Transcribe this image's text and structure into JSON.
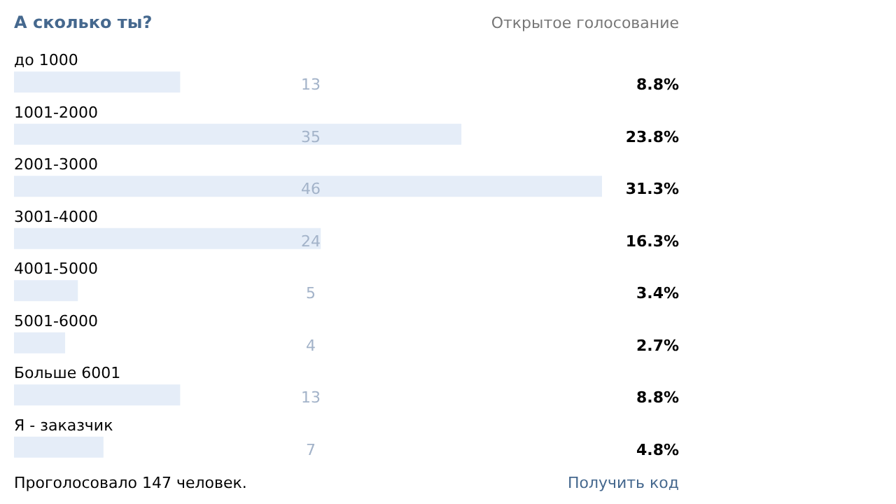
{
  "chart_data": {
    "type": "bar",
    "orientation": "horizontal",
    "title": "А сколько ты?",
    "subtitle": "Открытое голосование",
    "categories": [
      "до 1000",
      "1001-2000",
      "2001-3000",
      "3001-4000",
      "4001-5000",
      "5001-6000",
      "Больше 6001",
      "Я - заказчик"
    ],
    "values": [
      13,
      35,
      46,
      24,
      5,
      4,
      13,
      7
    ],
    "data_labels": true,
    "color": "#e5edf8",
    "annotations": [
      "Проголосовало 147 человек.",
      "Получить код",
      "8.8%",
      "23.8%",
      "31.3%",
      "16.3%",
      "3.4%",
      "2.7%",
      "8.8%",
      "4.8%"
    ]
  }
}
